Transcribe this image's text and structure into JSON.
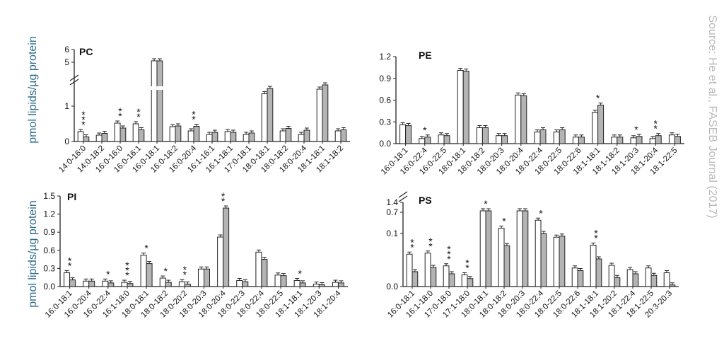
{
  "figure": {
    "y_axis_label": "pmol lipids/µg protein",
    "source_credit": "Source: He et al., FASEB Journal (2017)"
  },
  "chart_data": [
    {
      "type": "bar",
      "title": "PC",
      "ylim": [
        0,
        1.6
      ],
      "y_break": {
        "below": 1.6,
        "top_ticks": [
          "5",
          "6"
        ]
      },
      "yticks": [
        "0",
        "1"
      ],
      "categories": [
        "14:0-16:0",
        "14:0-18:2",
        "16:0-16:0",
        "16:0-16:1",
        "16:0-18:1",
        "16:0-18:2",
        "16:0-20:4",
        "16:1-16:1",
        "16:1-18:1",
        "17:0-18:1",
        "18:0-18:1",
        "18:0-18:2",
        "18:0-20:4",
        "18:1-18:1",
        "18:1-18:2"
      ],
      "series": [
        {
          "values": [
            0.28,
            0.18,
            0.52,
            0.5,
            5.0,
            0.42,
            0.3,
            0.2,
            0.28,
            0.2,
            1.35,
            0.3,
            0.2,
            1.48,
            0.3
          ]
        },
        {
          "values": [
            0.13,
            0.23,
            0.38,
            0.33,
            5.0,
            0.44,
            0.43,
            0.26,
            0.26,
            0.24,
            1.5,
            0.37,
            0.32,
            1.6,
            0.33
          ]
        }
      ],
      "annotations": [
        "***",
        "",
        "**",
        "**",
        "",
        "",
        "**",
        "",
        "",
        "",
        "",
        "",
        "",
        "",
        ""
      ]
    },
    {
      "type": "bar",
      "title": "PE",
      "ylim": [
        0,
        1.2
      ],
      "yticks": [
        "0.0",
        "0.3",
        "0.6",
        "0.9",
        "1.2"
      ],
      "categories": [
        "16:0-18:1",
        "16:0-22:4",
        "16:0-22:5",
        "18:0-18:1",
        "18:0-18:2",
        "18:0-20:3",
        "18:0-20:4",
        "18:0-22:4",
        "18:0-22:5",
        "18:0-22:6",
        "18:1-18:1",
        "18:1-18:2",
        "18:1-20:3",
        "18:1-20:4",
        "18:1-22:5"
      ],
      "series": [
        {
          "values": [
            0.26,
            0.07,
            0.12,
            1.01,
            0.22,
            0.11,
            0.67,
            0.16,
            0.16,
            0.09,
            0.43,
            0.09,
            0.08,
            0.07,
            0.12
          ]
        },
        {
          "values": [
            0.25,
            0.09,
            0.11,
            1.0,
            0.22,
            0.11,
            0.66,
            0.19,
            0.19,
            0.09,
            0.53,
            0.09,
            0.1,
            0.11,
            0.1
          ]
        }
      ],
      "annotations": [
        "",
        "*",
        "",
        "",
        "",
        "",
        "",
        "",
        "",
        "",
        "*",
        "",
        "*",
        "**",
        ""
      ]
    },
    {
      "type": "bar",
      "title": "PI",
      "ylim": [
        0,
        1.5
      ],
      "yticks": [
        "0.0",
        "0.3",
        "0.6",
        "0.9",
        "1.2",
        "1.5"
      ],
      "categories": [
        "16:0-18:1",
        "16:0-20:4",
        "16:0-22:4",
        "16:1-18:0",
        "18:0-18:1",
        "18:0-18:2",
        "18:0-20:2",
        "18:0-20:3",
        "18:0-20:4",
        "18:0-22:3",
        "18:0-22:4",
        "18:0-22:5",
        "18:1-18:1",
        "18:1-20:3",
        "18:1-20:4"
      ],
      "series": [
        {
          "values": [
            0.23,
            0.09,
            0.09,
            0.07,
            0.52,
            0.14,
            0.08,
            0.29,
            0.82,
            0.1,
            0.57,
            0.19,
            0.1,
            0.04,
            0.07
          ]
        },
        {
          "values": [
            0.11,
            0.09,
            0.06,
            0.05,
            0.38,
            0.07,
            0.04,
            0.29,
            1.3,
            0.08,
            0.45,
            0.18,
            0.06,
            0.03,
            0.06
          ]
        }
      ],
      "annotations": [
        "**",
        "",
        "*",
        "***",
        "*",
        "*",
        "**",
        "",
        "**",
        "",
        "",
        "",
        "*",
        "",
        ""
      ]
    },
    {
      "type": "bar",
      "title": "PS",
      "ylim": [
        0,
        0.16
      ],
      "y_break": {
        "below": 0.16,
        "top_ticks": [
          "0.7",
          "1.4"
        ]
      },
      "yticks": [
        "0.0",
        "0.1"
      ],
      "categories": [
        "16:0-18:1",
        "16:1-18:0",
        "17:0-18:0",
        "17:1-18:0",
        "18:0-18:1",
        "18:0-18:2",
        "18:0-20:3",
        "18:0-22:4",
        "18:0-22:5",
        "18:0-22:6",
        "18:1-18:1",
        "18:1-20:2",
        "18:1-22:4",
        "18:1-22:5",
        "20:3-20:3"
      ],
      "series": [
        {
          "values": [
            0.061,
            0.063,
            0.039,
            0.022,
            1.44,
            0.11,
            0.7,
            0.125,
            0.093,
            0.035,
            0.078,
            0.04,
            0.032,
            0.035,
            0.026
          ]
        },
        {
          "values": [
            0.028,
            0.036,
            0.024,
            0.015,
            1.2,
            0.077,
            0.75,
            0.1,
            0.095,
            0.03,
            0.052,
            0.017,
            0.024,
            0.021,
            0.003
          ]
        }
      ],
      "annotations": [
        "**",
        "**",
        "***",
        "**",
        "*",
        "*",
        "",
        "*",
        "",
        "",
        "**",
        "",
        "",
        "",
        ""
      ]
    }
  ]
}
